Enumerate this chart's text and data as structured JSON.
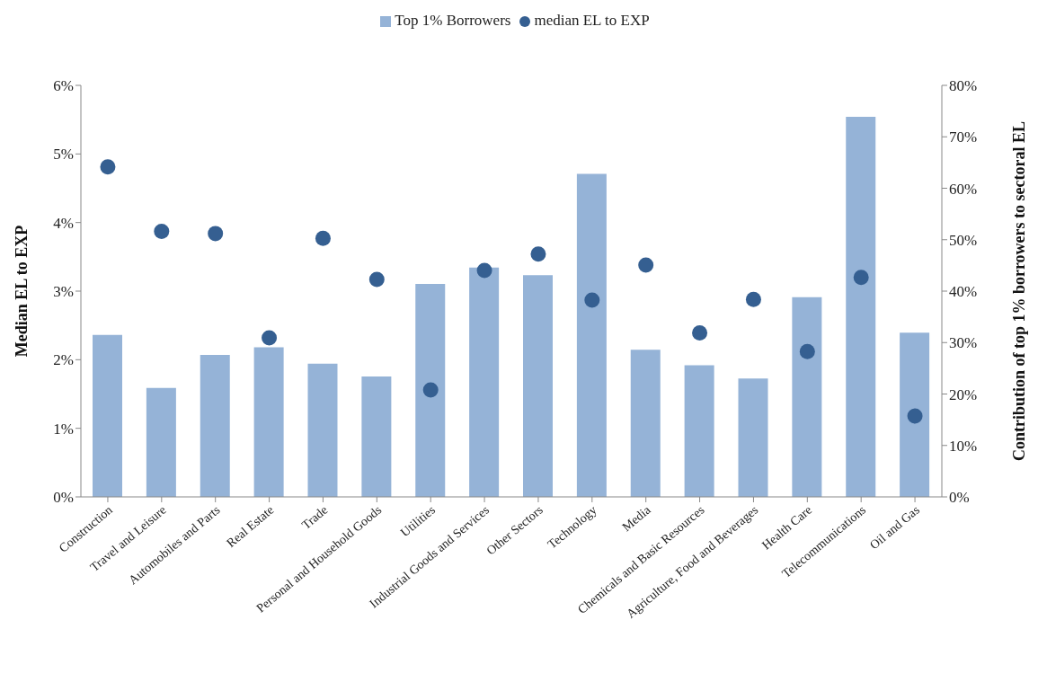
{
  "chart_data": {
    "type": "bar",
    "categories": [
      "Construction",
      "Travel and Leisure",
      "Automobiles and Parts",
      "Real Estate",
      "Trade",
      "Personal and Household Goods",
      "Utilities",
      "Industrial Goods and Services",
      "Other Sectors",
      "Technology",
      "Media",
      "Chemicals and Basic Resources",
      "Agriculture, Food and Beverages",
      "Health Care",
      "Telecommunications",
      "Oil and Gas"
    ],
    "series": [
      {
        "name": "Top 1% Borrowers",
        "axis": "y2",
        "color": "#95b3d7",
        "values": [
          31.5,
          21.2,
          27.6,
          29.1,
          25.9,
          23.4,
          41.4,
          44.6,
          43.1,
          62.8,
          28.6,
          25.6,
          23.0,
          38.8,
          73.9,
          31.9
        ]
      },
      {
        "name": "median EL to EXP",
        "type": "scatter",
        "axis": "y",
        "marker": "circle",
        "color": "#355f91",
        "values": [
          4.81,
          3.87,
          3.84,
          2.32,
          3.77,
          3.17,
          1.56,
          3.3,
          3.54,
          2.87,
          3.38,
          2.39,
          2.88,
          2.12,
          3.2,
          1.18
        ]
      }
    ],
    "ylabel": "Median EL to EXP",
    "y2label": "Contribution of  top 1% borrowers to sectoral EL",
    "ylim": [
      0,
      6
    ],
    "yticks": [
      {
        "value": 0,
        "label": "0%"
      },
      {
        "value": 1,
        "label": "1%"
      },
      {
        "value": 2,
        "label": "2%"
      },
      {
        "value": 3,
        "label": "3%"
      },
      {
        "value": 4,
        "label": "4%"
      },
      {
        "value": 5,
        "label": "5%"
      },
      {
        "value": 6,
        "label": "6%"
      }
    ],
    "y2lim": [
      0,
      80
    ],
    "y2ticks": [
      {
        "value": 0,
        "label": "0%"
      },
      {
        "value": 10,
        "label": "10%"
      },
      {
        "value": 20,
        "label": "20%"
      },
      {
        "value": 30,
        "label": "30%"
      },
      {
        "value": 40,
        "label": "40%"
      },
      {
        "value": 50,
        "label": "50%"
      },
      {
        "value": 60,
        "label": "60%"
      },
      {
        "value": 70,
        "label": "70%"
      },
      {
        "value": 80,
        "label": "80%"
      }
    ],
    "legend": "top"
  }
}
